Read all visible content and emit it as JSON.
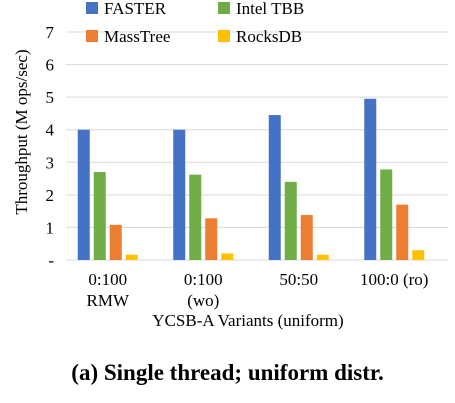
{
  "caption": "(a) Single thread; uniform distr.",
  "chart_data": {
    "type": "bar",
    "xlabel": "YCSB-A Variants (uniform)",
    "ylabel": "Throughput (M ops/sec)",
    "ylim": [
      0,
      7
    ],
    "yticks": [
      "-",
      "1",
      "2",
      "3",
      "4",
      "5",
      "6",
      "7"
    ],
    "grid": "y",
    "legend": "top",
    "categories": [
      {
        "line1": "0:100",
        "line2": "RMW"
      },
      {
        "line1": "0:100",
        "line2": "(wo)"
      },
      {
        "line1": "50:50",
        "line2": ""
      },
      {
        "line1": "100:0 (ro)",
        "line2": ""
      }
    ],
    "series": [
      {
        "name": "FASTER",
        "color": "#4472C4",
        "values": [
          4.0,
          4.0,
          4.45,
          4.95
        ]
      },
      {
        "name": "Intel TBB",
        "color": "#70AD47",
        "values": [
          2.7,
          2.62,
          2.4,
          2.78
        ]
      },
      {
        "name": "MassTree",
        "color": "#ED7D31",
        "values": [
          1.08,
          1.28,
          1.38,
          1.7
        ]
      },
      {
        "name": "RocksDB",
        "color": "#FFC000",
        "values": [
          0.16,
          0.2,
          0.16,
          0.3
        ]
      }
    ]
  }
}
